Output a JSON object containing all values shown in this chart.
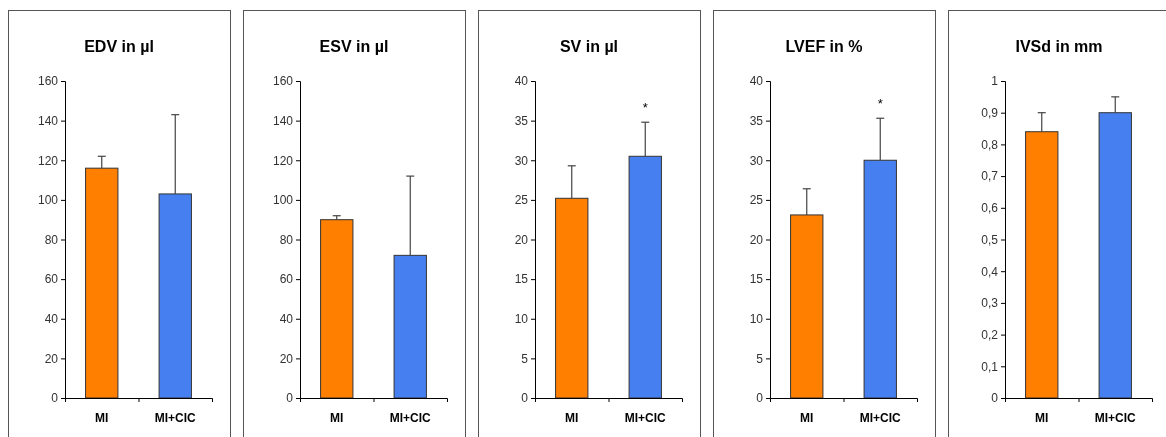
{
  "chart_data": [
    {
      "type": "bar",
      "title": "EDV in µl",
      "categories": [
        "MI",
        "MI+CIC"
      ],
      "values": [
        116,
        103
      ],
      "colors": [
        "#ff7f00",
        "#4680f0"
      ],
      "errors": [
        [
          116,
          122
        ],
        [
          103,
          143
        ]
      ],
      "ylim": [
        0,
        160
      ],
      "yticks": [
        0,
        20,
        40,
        60,
        80,
        100,
        120,
        140,
        160
      ]
    },
    {
      "type": "bar",
      "title": "ESV in µl",
      "categories": [
        "MI",
        "MI+CIC"
      ],
      "values": [
        90,
        72
      ],
      "colors": [
        "#ff7f00",
        "#4680f0"
      ],
      "errors": [
        [
          90,
          92
        ],
        [
          72,
          112
        ]
      ],
      "ylim": [
        0,
        160
      ],
      "yticks": [
        0,
        20,
        40,
        60,
        80,
        100,
        120,
        140,
        160
      ]
    },
    {
      "type": "bar",
      "title": "SV in µl",
      "categories": [
        "MI",
        "MI+CIC"
      ],
      "values": [
        25.2,
        30.5
      ],
      "colors": [
        "#ff7f00",
        "#4680f0"
      ],
      "errors": [
        [
          25.2,
          29.3
        ],
        [
          30.5,
          34.8
        ]
      ],
      "ylim": [
        0,
        40
      ],
      "yticks": [
        0,
        5,
        10,
        15,
        20,
        25,
        30,
        35,
        40
      ],
      "annotations": [
        "*"
      ]
    },
    {
      "type": "bar",
      "title": "LVEF in %",
      "categories": [
        "MI",
        "MI+CIC"
      ],
      "values": [
        23.1,
        30
      ],
      "colors": [
        "#ff7f00",
        "#4680f0"
      ],
      "errors": [
        [
          23.1,
          26.4
        ],
        [
          30,
          35.3
        ]
      ],
      "ylim": [
        0,
        40
      ],
      "yticks": [
        0,
        5,
        10,
        15,
        20,
        25,
        30,
        35,
        40
      ],
      "annotations": [
        "*"
      ]
    },
    {
      "type": "bar",
      "title": "IVSd in mm",
      "categories": [
        "MI",
        "MI+CIC"
      ],
      "values": [
        0.84,
        0.9
      ],
      "colors": [
        "#ff7f00",
        "#4680f0"
      ],
      "errors": [
        [
          0.84,
          0.9
        ],
        [
          0.9,
          0.95
        ]
      ],
      "ylim": [
        0,
        1
      ],
      "yticks": [
        0,
        {
          "value": 0.1,
          "label": "0,1"
        },
        {
          "value": 0.2,
          "label": "0,2"
        },
        {
          "value": 0.3,
          "label": "0,3"
        },
        {
          "value": 0.4,
          "label": "0,4"
        },
        {
          "value": 0.5,
          "label": "0,5"
        },
        {
          "value": 0.6,
          "label": "0,6"
        },
        {
          "value": 0.7,
          "label": "0,7"
        },
        {
          "value": 0.8,
          "label": "0,8"
        },
        {
          "value": 0.9,
          "label": "0,9"
        },
        1
      ]
    }
  ]
}
